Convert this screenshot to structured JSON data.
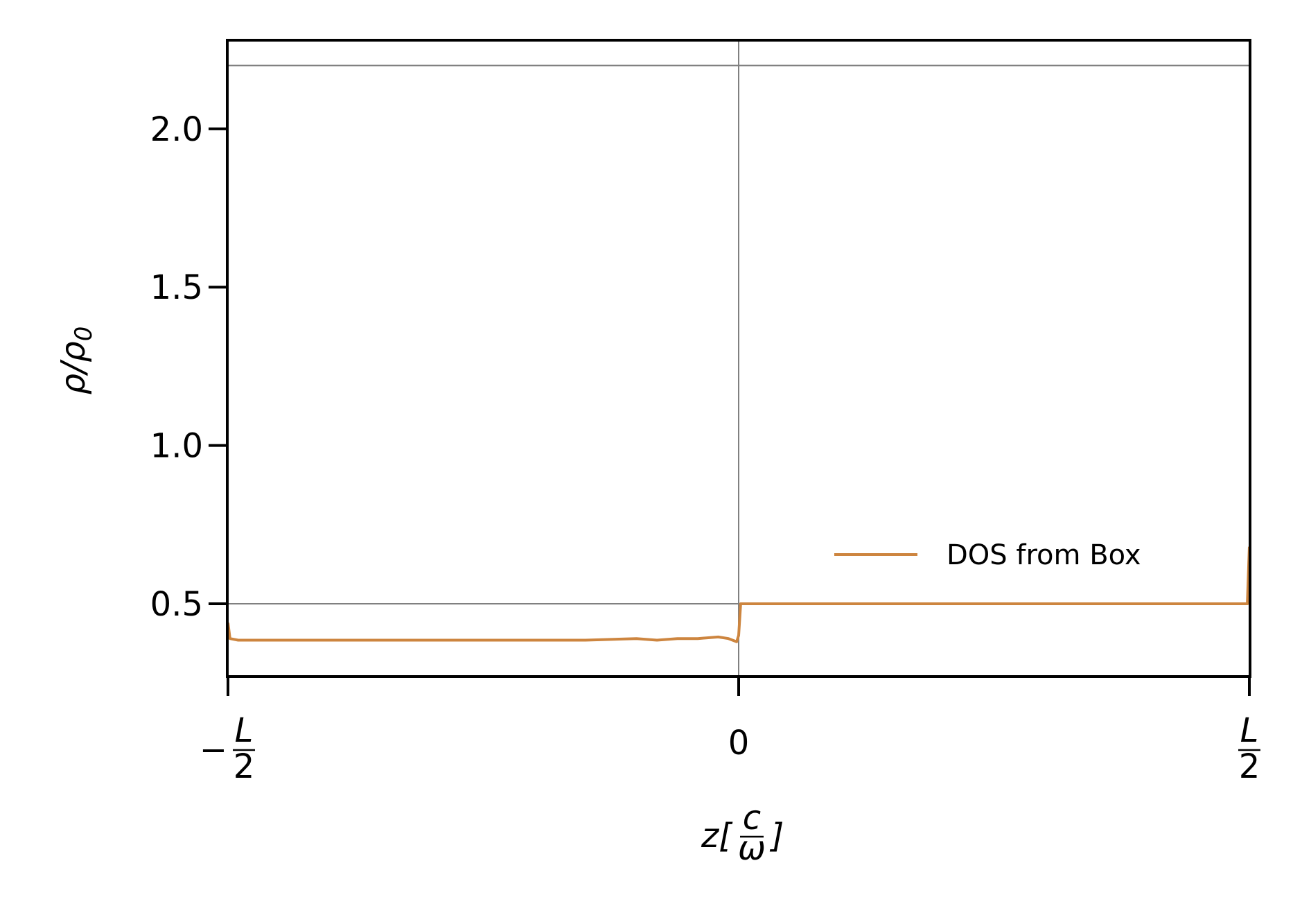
{
  "chart_data": {
    "type": "line",
    "title": "",
    "xlabel": "z[c/ω]",
    "ylabel": "ρ/ρ0",
    "xlim": [
      -0.5,
      0.5
    ],
    "ylim": [
      0.27,
      2.28
    ],
    "x_ticks": [
      {
        "value": -0.5,
        "label": "−L/2"
      },
      {
        "value": 0,
        "label": "0"
      },
      {
        "value": 0.5,
        "label": "L/2"
      }
    ],
    "y_ticks": [
      {
        "value": 0.5,
        "label": "0.5"
      },
      {
        "value": 1.0,
        "label": "1.0"
      },
      {
        "value": 1.5,
        "label": "1.5"
      },
      {
        "value": 2.0,
        "label": "2.0"
      }
    ],
    "reference_lines": {
      "horizontal": [
        0.5,
        2.2
      ],
      "vertical": [
        0
      ],
      "color": "#808080"
    },
    "grid": false,
    "legend_position": "lower-right",
    "series": [
      {
        "name": "DOS from Box",
        "color": "#CD853F",
        "x": [
          -0.5,
          -0.498,
          -0.49,
          -0.4,
          -0.3,
          -0.2,
          -0.15,
          -0.1,
          -0.08,
          -0.06,
          -0.04,
          -0.02,
          -0.01,
          -0.002,
          0.0,
          0.002,
          0.1,
          0.2,
          0.3,
          0.4,
          0.49,
          0.498,
          0.5
        ],
        "y": [
          0.44,
          0.39,
          0.385,
          0.385,
          0.385,
          0.385,
          0.385,
          0.39,
          0.385,
          0.39,
          0.39,
          0.395,
          0.39,
          0.38,
          0.4,
          0.5,
          0.5,
          0.5,
          0.5,
          0.5,
          0.5,
          0.5,
          0.68
        ]
      }
    ]
  },
  "text": {
    "y_axis_label": "ρ/ρ",
    "y_axis_label_sub": "0",
    "x_axis_label_main": "z[",
    "x_axis_label_num": "c",
    "x_axis_label_den": "ω",
    "x_axis_label_close": "]",
    "x_tick_left_sign": "−",
    "x_tick_frac_num": "L",
    "x_tick_frac_den": "2",
    "x_tick_mid": "0",
    "legend_label": "DOS from Box"
  }
}
